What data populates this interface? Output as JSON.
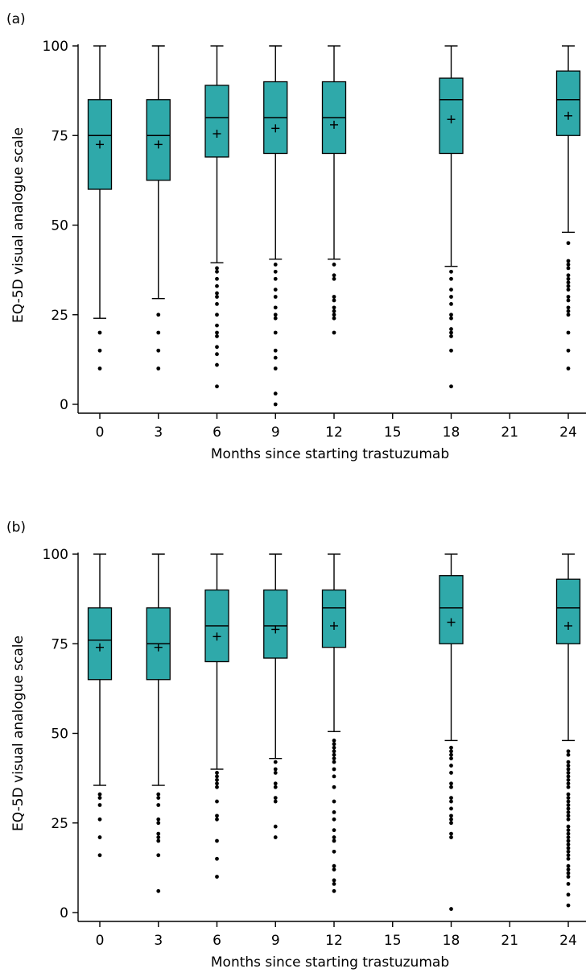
{
  "panels": [
    {
      "label": "(a)"
    },
    {
      "label": "(b)"
    }
  ],
  "colors": {
    "box_fill": "#2fa9aa",
    "stroke": "#000000"
  },
  "chart_data": [
    {
      "type": "box",
      "panel": "(a)",
      "xlabel": "Months since starting trastuzumab",
      "ylabel": "EQ-5D visual analogue scale",
      "xticks": [
        0,
        3,
        6,
        9,
        12,
        15,
        18,
        21,
        24
      ],
      "yticks": [
        0,
        25,
        50,
        75,
        100
      ],
      "xlim": [
        -1,
        25
      ],
      "ylim": [
        -1,
        101
      ],
      "grid": false,
      "boxes": [
        {
          "x": 0,
          "min": 24,
          "q1": 60,
          "median": 75,
          "q3": 85,
          "max": 100,
          "mean": 72.5,
          "outliers": [
            20,
            15,
            10
          ]
        },
        {
          "x": 3,
          "min": 29.5,
          "q1": 62.5,
          "median": 75,
          "q3": 85,
          "max": 100,
          "mean": 72.5,
          "outliers": [
            25,
            20,
            15,
            10
          ]
        },
        {
          "x": 6,
          "min": 39.5,
          "q1": 69,
          "median": 80,
          "q3": 89,
          "max": 100,
          "mean": 75.5,
          "outliers": [
            38,
            37,
            35,
            33,
            31,
            30,
            28,
            25,
            22,
            20,
            19,
            16,
            14,
            11,
            5
          ]
        },
        {
          "x": 9,
          "min": 40.5,
          "q1": 70,
          "median": 80,
          "q3": 90,
          "max": 100,
          "mean": 77,
          "outliers": [
            39,
            37,
            35,
            32,
            30,
            27,
            25,
            24,
            20,
            15,
            13,
            10,
            3,
            0
          ]
        },
        {
          "x": 12,
          "min": 40.5,
          "q1": 70,
          "median": 80,
          "q3": 90,
          "max": 100,
          "mean": 78,
          "outliers": [
            39,
            36,
            35,
            30,
            29,
            27,
            26,
            25,
            24,
            20
          ]
        },
        {
          "x": 18,
          "min": 38.5,
          "q1": 70,
          "median": 85,
          "q3": 91,
          "max": 100,
          "mean": 79.5,
          "outliers": [
            37,
            35,
            32,
            30,
            28,
            25,
            24,
            21,
            20,
            19,
            15,
            5
          ]
        },
        {
          "x": 24,
          "min": 48,
          "q1": 75,
          "median": 85,
          "q3": 93,
          "max": 100,
          "mean": 80.5,
          "outliers": [
            45,
            40,
            39,
            38,
            36,
            35,
            34,
            33,
            32,
            30,
            29,
            27,
            26,
            25,
            20,
            15,
            10
          ]
        }
      ]
    },
    {
      "type": "box",
      "panel": "(b)",
      "xlabel": "Months since starting trastuzumab",
      "ylabel": "EQ-5D visual analogue scale",
      "xticks": [
        0,
        3,
        6,
        9,
        12,
        15,
        18,
        21,
        24
      ],
      "yticks": [
        0,
        25,
        50,
        75,
        100
      ],
      "xlim": [
        -1,
        25
      ],
      "ylim": [
        -1,
        101
      ],
      "grid": false,
      "boxes": [
        {
          "x": 0,
          "min": 35.5,
          "q1": 65,
          "median": 76,
          "q3": 85,
          "max": 100,
          "mean": 74,
          "outliers": [
            33,
            32,
            30,
            26,
            21,
            16
          ]
        },
        {
          "x": 3,
          "min": 35.5,
          "q1": 65,
          "median": 75,
          "q3": 85,
          "max": 100,
          "mean": 74,
          "outliers": [
            33,
            32,
            30,
            26,
            25,
            22,
            21,
            20,
            16,
            6
          ]
        },
        {
          "x": 6,
          "min": 40,
          "q1": 70,
          "median": 80,
          "q3": 90,
          "max": 100,
          "mean": 77,
          "outliers": [
            39,
            38,
            37,
            36,
            35,
            31,
            27,
            26,
            20,
            15,
            10
          ]
        },
        {
          "x": 9,
          "min": 43,
          "q1": 71,
          "median": 80,
          "q3": 90,
          "max": 100,
          "mean": 79,
          "outliers": [
            42,
            40,
            39,
            36,
            35,
            32,
            31,
            24,
            21
          ]
        },
        {
          "x": 12,
          "min": 50.5,
          "q1": 74,
          "median": 85,
          "q3": 90,
          "max": 100,
          "mean": 80,
          "outliers": [
            48,
            47,
            46,
            45,
            44,
            43,
            42,
            40,
            38,
            35,
            31,
            28,
            26,
            23,
            21,
            20,
            17,
            13,
            12,
            9,
            8,
            6
          ]
        },
        {
          "x": 18,
          "min": 48,
          "q1": 75,
          "median": 85,
          "q3": 94,
          "max": 100,
          "mean": 81,
          "outliers": [
            46,
            45,
            44,
            43,
            41,
            39,
            36,
            35,
            32,
            31,
            29,
            27,
            26,
            25,
            22,
            21,
            1
          ]
        },
        {
          "x": 24,
          "min": 48,
          "q1": 75,
          "median": 85,
          "q3": 93,
          "max": 100,
          "mean": 80,
          "outliers": [
            45,
            44,
            42,
            41,
            40,
            39,
            38,
            37,
            36,
            35,
            33,
            32,
            31,
            30,
            29,
            28,
            27,
            26,
            24,
            23,
            22,
            21,
            20,
            19,
            18,
            17,
            16,
            15,
            13,
            12,
            11,
            10,
            8,
            5,
            2
          ]
        }
      ]
    }
  ]
}
